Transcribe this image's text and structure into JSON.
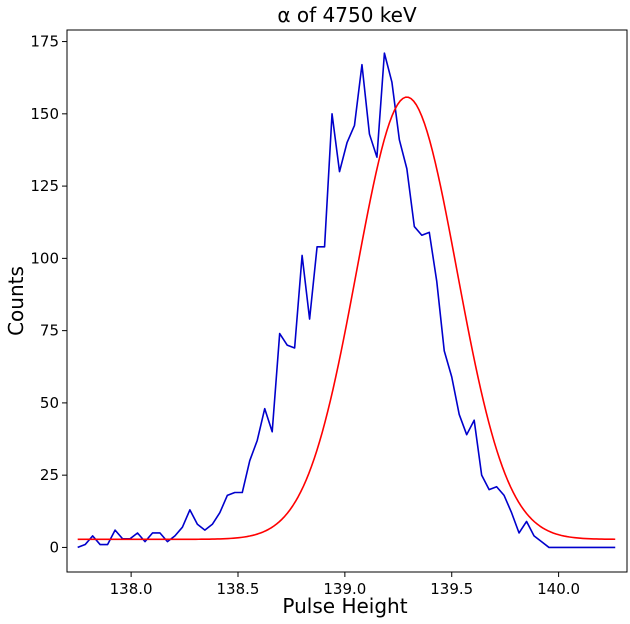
{
  "chart_data": {
    "type": "line",
    "title": "α of 4750 keV",
    "xlabel": "Pulse Height",
    "ylabel": "Counts",
    "xlim": [
      137.7,
      140.32
    ],
    "ylim": [
      -8.5,
      179
    ],
    "grid": false,
    "legend": "none",
    "xticks": [
      138.0,
      138.5,
      139.0,
      139.5,
      140.0
    ],
    "xtick_labels": [
      "138.0",
      "138.5",
      "139.0",
      "139.5",
      "140.0"
    ],
    "yticks": [
      0,
      25,
      50,
      75,
      100,
      125,
      150,
      175
    ],
    "ytick_labels": [
      "0",
      "25",
      "50",
      "75",
      "100",
      "125",
      "150",
      "175"
    ],
    "series": [
      {
        "role": "data",
        "color": "#0000cc",
        "x": [
          137.75,
          137.785,
          137.82,
          137.855,
          137.89,
          137.925,
          137.96,
          137.995,
          138.03,
          138.065,
          138.1,
          138.135,
          138.17,
          138.205,
          138.24,
          138.275,
          138.31,
          138.345,
          138.38,
          138.415,
          138.45,
          138.485,
          138.52,
          138.555,
          138.59,
          138.625,
          138.66,
          138.695,
          138.73,
          138.765,
          138.8,
          138.835,
          138.87,
          138.905,
          138.94,
          138.975,
          139.01,
          139.045,
          139.08,
          139.115,
          139.15,
          139.185,
          139.22,
          139.255,
          139.29,
          139.325,
          139.36,
          139.395,
          139.43,
          139.465,
          139.5,
          139.535,
          139.57,
          139.605,
          139.64,
          139.675,
          139.71,
          139.745,
          139.78,
          139.815,
          139.85,
          139.885,
          139.92,
          139.955,
          139.99,
          140.025,
          140.06,
          140.095,
          140.13,
          140.165,
          140.2,
          140.235,
          140.265
        ],
        "y": [
          0,
          1,
          4,
          1,
          1,
          6,
          3,
          3,
          5,
          2,
          5,
          5,
          2,
          4,
          7,
          13,
          8,
          6,
          8,
          12,
          18,
          19,
          19,
          30,
          37,
          48,
          40,
          74,
          70,
          69,
          101,
          79,
          104,
          104,
          150,
          130,
          140,
          146,
          167,
          143,
          135,
          171,
          161,
          141,
          131,
          111,
          108,
          109,
          92,
          68,
          59,
          46,
          39,
          44,
          25,
          20,
          21,
          18,
          12,
          5,
          9,
          4,
          2,
          0,
          0,
          0,
          0,
          0,
          0,
          0,
          0,
          0,
          0
        ]
      },
      {
        "role": "fit",
        "color": "#ff0000",
        "model": "gaussian",
        "params": {
          "amplitude": 153,
          "center": 139.29,
          "sigma": 0.235,
          "offset": 2.8
        },
        "x_range": [
          137.75,
          140.265
        ]
      }
    ]
  }
}
